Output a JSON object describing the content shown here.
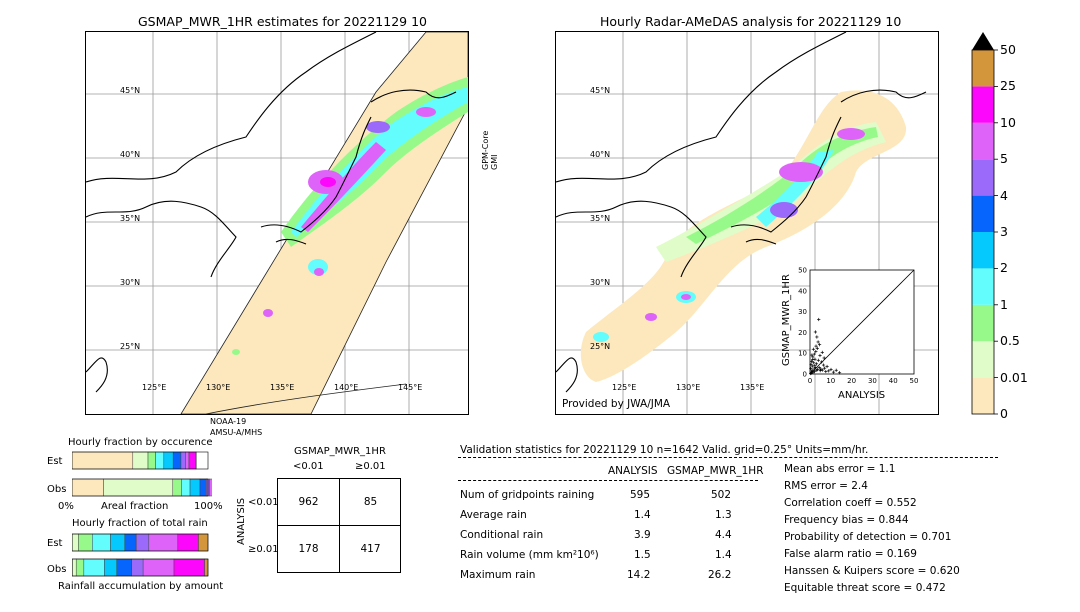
{
  "left_map": {
    "title": "GSMAP_MWR_1HR estimates for 20221129 10",
    "lat_labels": [
      "45°N",
      "40°N",
      "35°N",
      "30°N",
      "25°N"
    ],
    "lon_labels": [
      "125°E",
      "130°E",
      "135°E",
      "140°E",
      "145°E"
    ],
    "sat_label_right": "GPM-Core\nGMI",
    "sat_label_bottom_1": "NOAA-19",
    "sat_label_bottom_2": "AMSU-A/MHS"
  },
  "right_map": {
    "title": "Hourly Radar-AMeDAS analysis for 20221129 10",
    "lat_labels": [
      "45°N",
      "40°N",
      "35°N",
      "30°N",
      "25°N"
    ],
    "lon_labels": [
      "125°E",
      "130°E",
      "135°E"
    ],
    "credit": "Provided by JWA/JMA"
  },
  "colorbar": {
    "levels": [
      "0",
      "0.01",
      "0.5",
      "1",
      "2",
      "3",
      "4",
      "5",
      "10",
      "25",
      "50"
    ],
    "colors": [
      "#fde8bd",
      "#e0fcc8",
      "#98f98b",
      "#62fdfc",
      "#05c8fd",
      "#0665fd",
      "#9c6afb",
      "#de64f9",
      "#fc07fb",
      "#d4963a"
    ],
    "extend_color": "#000000"
  },
  "scatter": {
    "ylabel": "GSMAP_MWR_1HR",
    "xlabel": "ANALYSIS",
    "ticks": [
      "0",
      "10",
      "20",
      "30",
      "40",
      "50"
    ]
  },
  "chart_data": [
    {
      "type": "scatter",
      "title": "",
      "xlabel": "ANALYSIS",
      "ylabel": "GSMAP_MWR_1HR",
      "xlim": [
        0,
        50
      ],
      "ylim": [
        0,
        50
      ],
      "reference_line": "y=x",
      "points": [
        [
          0.3,
          0.2
        ],
        [
          0.6,
          0.4
        ],
        [
          1.0,
          0.8
        ],
        [
          1.2,
          1.5
        ],
        [
          1.5,
          0.9
        ],
        [
          2.0,
          2.4
        ],
        [
          2.2,
          1.1
        ],
        [
          2.5,
          3.2
        ],
        [
          3.0,
          1.8
        ],
        [
          0.5,
          4.5
        ],
        [
          0.8,
          6.0
        ],
        [
          1.1,
          3.8
        ],
        [
          1.4,
          8.2
        ],
        [
          1.8,
          5.4
        ],
        [
          2.1,
          9.6
        ],
        [
          2.4,
          7.1
        ],
        [
          2.8,
          10.8
        ],
        [
          3.1,
          4.9
        ],
        [
          3.5,
          12.3
        ],
        [
          4.0,
          6.6
        ],
        [
          4.4,
          3.1
        ],
        [
          4.8,
          8.9
        ],
        [
          5.2,
          2.4
        ],
        [
          5.6,
          5.8
        ],
        [
          6.0,
          1.9
        ],
        [
          6.5,
          4.3
        ],
        [
          7.0,
          2.8
        ],
        [
          7.6,
          1.2
        ],
        [
          8.2,
          3.6
        ],
        [
          9.0,
          1.5
        ],
        [
          10.1,
          2.2
        ],
        [
          11.3,
          0.9
        ],
        [
          12.6,
          1.8
        ],
        [
          14.2,
          0.6
        ],
        [
          3.3,
          17.8
        ],
        [
          3.9,
          15.4
        ],
        [
          4.6,
          14.1
        ],
        [
          2.6,
          20.2
        ],
        [
          4.2,
          26.2
        ],
        [
          2.9,
          13.4
        ],
        [
          1.6,
          11.9
        ],
        [
          0.9,
          9.1
        ],
        [
          0.4,
          2.6
        ],
        [
          5.9,
          10.4
        ],
        [
          6.8,
          7.7
        ],
        [
          3.6,
          2.1
        ],
        [
          2.3,
          4.0
        ],
        [
          1.3,
          6.9
        ],
        [
          0.7,
          1.4
        ],
        [
          4.9,
          1.6
        ]
      ]
    },
    {
      "type": "bar",
      "title": "Hourly fraction by occurence",
      "xlabel": "Areal fraction",
      "categories": [
        "Est",
        "Obs"
      ],
      "x_ticks": [
        "0%",
        "100%"
      ],
      "segments": {
        "Est": [
          0.447,
          0.112,
          0.055,
          0.061,
          0.069,
          0.057,
          0.033,
          0.026,
          0.051,
          0.003
        ],
        "Obs": [
          0.232,
          0.509,
          0.063,
          0.064,
          0.073,
          0.047,
          0.022,
          0.024,
          0.063,
          0.003
        ]
      }
    },
    {
      "type": "bar",
      "title": "Hourly fraction of total rain",
      "xlabel": "Rainfall accumulation by amount",
      "categories": [
        "Est",
        "Obs"
      ],
      "segments": {
        "Est": [
          0.0,
          0.002,
          0.045,
          0.102,
          0.134,
          0.105,
          0.084,
          0.093,
          0.213,
          0.152,
          0.07
        ],
        "Obs": [
          0.0,
          0.003,
          0.028,
          0.056,
          0.151,
          0.091,
          0.11,
          0.084,
          0.227,
          0.225,
          0.025
        ]
      }
    },
    {
      "type": "table",
      "title": "GSMAP_MWR_1HR",
      "col_headers": [
        "<0.01",
        "≥0.01"
      ],
      "row_label": "ANALYSIS",
      "row_headers": [
        "<0.01",
        "≥0.01"
      ],
      "cells": [
        [
          962,
          85
        ],
        [
          178,
          417
        ]
      ]
    }
  ],
  "contingency": {
    "title": "GSMAP_MWR_1HR",
    "col_lt": "<0.01",
    "col_ge": "≥0.01",
    "row_axis": "ANALYSIS",
    "row_lt": "<0.01",
    "row_ge": "≥0.01",
    "c11": "962",
    "c12": "85",
    "c21": "178",
    "c22": "417"
  },
  "frac_occ": {
    "title": "Hourly fraction by occurence",
    "est": "Est",
    "obs": "Obs",
    "x0": "0%",
    "x1": "100%",
    "xlabel": "Areal fraction"
  },
  "frac_rain": {
    "title": "Hourly fraction of total rain",
    "est": "Est",
    "obs": "Obs",
    "xlabel": "Rainfall accumulation by amount"
  },
  "validation": {
    "header": "Validation statistics for 20221129 10  n=1642 Valid. grid=0.25° Units=mm/hr.",
    "col_analysis": "ANALYSIS",
    "col_gsmap": "GSMAP_MWR_1HR",
    "rows": [
      {
        "label": "Num of gridpoints raining",
        "a": "595",
        "g": "502"
      },
      {
        "label": "Average rain",
        "a": "1.4",
        "g": "1.3"
      },
      {
        "label": "Conditional rain",
        "a": "3.9",
        "g": "4.4"
      },
      {
        "label": "Rain volume (mm km²10⁶)",
        "a": "1.5",
        "g": "1.4"
      },
      {
        "label": "Maximum rain",
        "a": "14.2",
        "g": "26.2"
      }
    ],
    "scores": [
      "Mean abs error =    1.1",
      "RMS error =    2.4",
      "Correlation coeff =  0.552",
      "Frequency bias =  0.844",
      "Probability of detection =  0.701",
      "False alarm ratio =  0.169",
      "Hanssen & Kuipers score =  0.620",
      "Equitable threat score =  0.472"
    ]
  }
}
